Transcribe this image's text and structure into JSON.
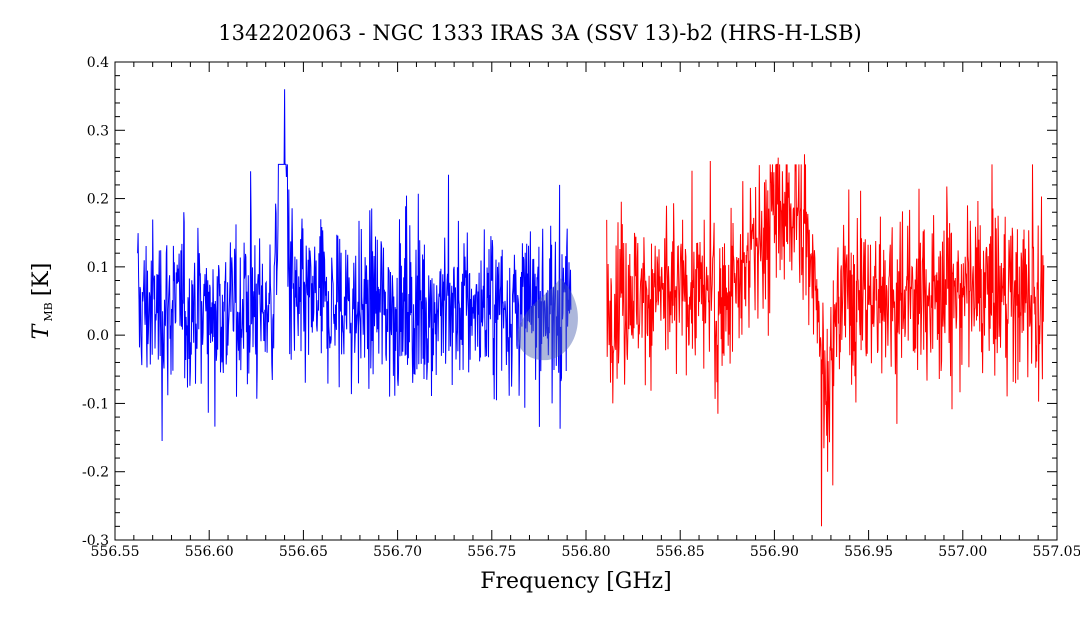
{
  "chart_data": {
    "type": "line",
    "title": "1342202063 - NGC 1333 IRAS 3A (SSV 13)-b2 (HRS-H-LSB)",
    "xlabel": "Frequency [GHz]",
    "ylabel_main": "T",
    "ylabel_sub": "MB",
    "ylabel_unit": "[K]",
    "xlim": [
      556.55,
      557.05
    ],
    "ylim": [
      -0.3,
      0.4
    ],
    "x_tick_labels": [
      "556.55",
      "556.60",
      "556.65",
      "556.70",
      "556.75",
      "556.80",
      "556.85",
      "556.90",
      "556.95",
      "557.00",
      "557.05"
    ],
    "y_tick_labels": [
      "-0.3",
      "-0.2",
      "-0.1",
      "0.0",
      "0.1",
      "0.2",
      "0.3",
      "0.4"
    ],
    "grid": false,
    "colors": {
      "series_1": "#0000ff",
      "series_2": "#ff0000",
      "blob": "#4a5fb0"
    },
    "series": [
      {
        "color": "#0000ff",
        "x_range": [
          556.562,
          556.792
        ],
        "noise_rms": 0.06,
        "baseline": 0.04,
        "features": [
          {
            "type": "emission",
            "center": 556.639,
            "peak": 0.33,
            "width": 0.002
          }
        ],
        "extremes": [
          {
            "x": 556.575,
            "y": -0.155
          },
          {
            "x": 556.64,
            "y": 0.36
          },
          {
            "x": 556.622,
            "y": 0.24
          },
          {
            "x": 556.727,
            "y": 0.235
          },
          {
            "x": 556.786,
            "y": 0.22
          },
          {
            "x": 556.782,
            "y": -0.1
          }
        ]
      },
      {
        "color": "#ff0000",
        "x_range": [
          556.811,
          557.043
        ],
        "noise_rms": 0.06,
        "baseline": 0.06,
        "features": [
          {
            "type": "emission",
            "center": 556.905,
            "peak": 0.13,
            "width": 0.012
          },
          {
            "type": "absorption",
            "center": 556.928,
            "peak": -0.15,
            "width": 0.003
          }
        ],
        "extremes": [
          {
            "x": 556.925,
            "y": -0.28
          },
          {
            "x": 556.931,
            "y": -0.22
          },
          {
            "x": 556.916,
            "y": 0.265
          },
          {
            "x": 556.902,
            "y": 0.26
          },
          {
            "x": 556.866,
            "y": 0.255
          },
          {
            "x": 557.037,
            "y": 0.25
          },
          {
            "x": 556.87,
            "y": -0.115
          },
          {
            "x": 556.965,
            "y": -0.13
          }
        ]
      }
    ]
  }
}
